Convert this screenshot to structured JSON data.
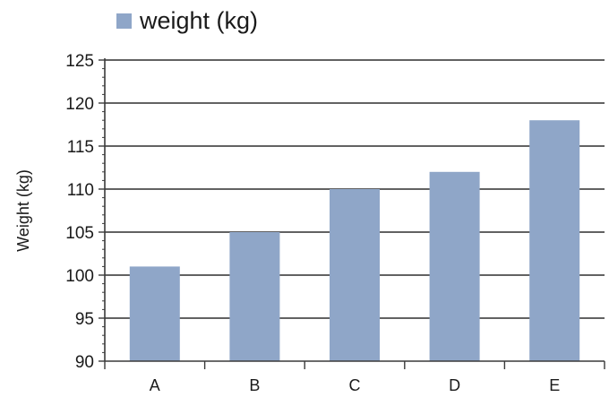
{
  "chart_data": {
    "type": "bar",
    "title": "",
    "xlabel": "",
    "ylabel": "Weight (kg)",
    "categories": [
      "A",
      "B",
      "C",
      "D",
      "E"
    ],
    "series": [
      {
        "name": "weight (kg)",
        "values": [
          101,
          105,
          110,
          112,
          118
        ]
      }
    ],
    "ylim": [
      90,
      125
    ],
    "yticks": [
      90,
      95,
      100,
      105,
      110,
      115,
      120,
      125
    ],
    "grid": true,
    "legend_position": "top-left",
    "bar_color": "#8fa6c8",
    "axis_color": "#3a3a3a"
  }
}
